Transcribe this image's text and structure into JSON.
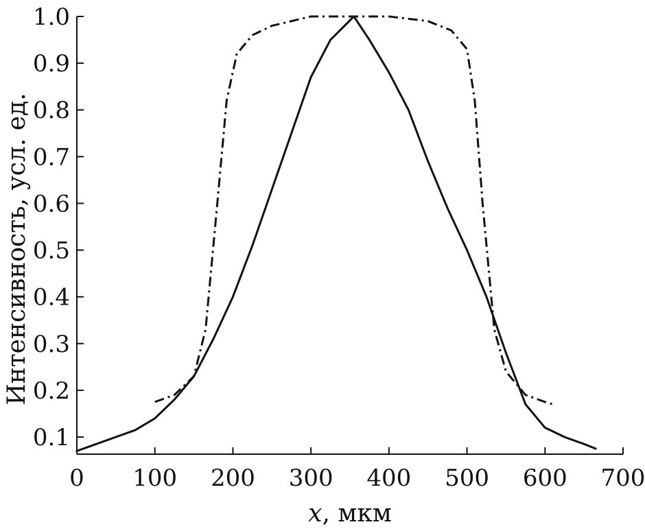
{
  "chart_data": {
    "type": "line",
    "xlabel_var": "x",
    "xlabel_unit": ", мкм",
    "ylabel": "Интенсивность, усл. ед.",
    "xlim": [
      0,
      700
    ],
    "ylim": [
      0.05,
      1.0
    ],
    "x_ticks": [
      0,
      100,
      200,
      300,
      400,
      500,
      600,
      700
    ],
    "x_tick_labels": [
      "0",
      "100",
      "200",
      "300",
      "400",
      "500",
      "600",
      "700"
    ],
    "y_ticks": [
      0.1,
      0.2,
      0.3,
      0.4,
      0.5,
      0.6,
      0.7,
      0.8,
      0.9,
      1.0
    ],
    "y_tick_labels": [
      "0.1",
      "0.2",
      "0.3",
      "0.4",
      "0.5",
      "0.6",
      "0.7",
      "0.8",
      "0.9",
      "1.0"
    ],
    "grid": false,
    "series": [
      {
        "style": "solid",
        "color": "#111111",
        "points": [
          [
            0,
            0.07
          ],
          [
            25,
            0.085
          ],
          [
            50,
            0.1
          ],
          [
            75,
            0.115
          ],
          [
            100,
            0.14
          ],
          [
            125,
            0.18
          ],
          [
            150,
            0.23
          ],
          [
            175,
            0.31
          ],
          [
            200,
            0.4
          ],
          [
            225,
            0.51
          ],
          [
            250,
            0.63
          ],
          [
            275,
            0.75
          ],
          [
            300,
            0.87
          ],
          [
            325,
            0.95
          ],
          [
            355,
            1.0
          ],
          [
            375,
            0.95
          ],
          [
            400,
            0.88
          ],
          [
            425,
            0.8
          ],
          [
            450,
            0.69
          ],
          [
            475,
            0.59
          ],
          [
            500,
            0.5
          ],
          [
            525,
            0.4
          ],
          [
            550,
            0.28
          ],
          [
            575,
            0.17
          ],
          [
            600,
            0.12
          ],
          [
            625,
            0.1
          ],
          [
            650,
            0.085
          ],
          [
            665,
            0.075
          ]
        ]
      },
      {
        "style": "dash-dot",
        "color": "#111111",
        "points": [
          [
            100,
            0.175
          ],
          [
            125,
            0.19
          ],
          [
            150,
            0.23
          ],
          [
            165,
            0.33
          ],
          [
            180,
            0.6
          ],
          [
            192,
            0.82
          ],
          [
            205,
            0.92
          ],
          [
            225,
            0.96
          ],
          [
            250,
            0.98
          ],
          [
            300,
            1.0
          ],
          [
            350,
            1.0
          ],
          [
            400,
            1.0
          ],
          [
            450,
            0.99
          ],
          [
            480,
            0.97
          ],
          [
            500,
            0.93
          ],
          [
            510,
            0.82
          ],
          [
            520,
            0.6
          ],
          [
            535,
            0.33
          ],
          [
            550,
            0.24
          ],
          [
            575,
            0.19
          ],
          [
            600,
            0.175
          ],
          [
            610,
            0.17
          ]
        ]
      }
    ]
  }
}
